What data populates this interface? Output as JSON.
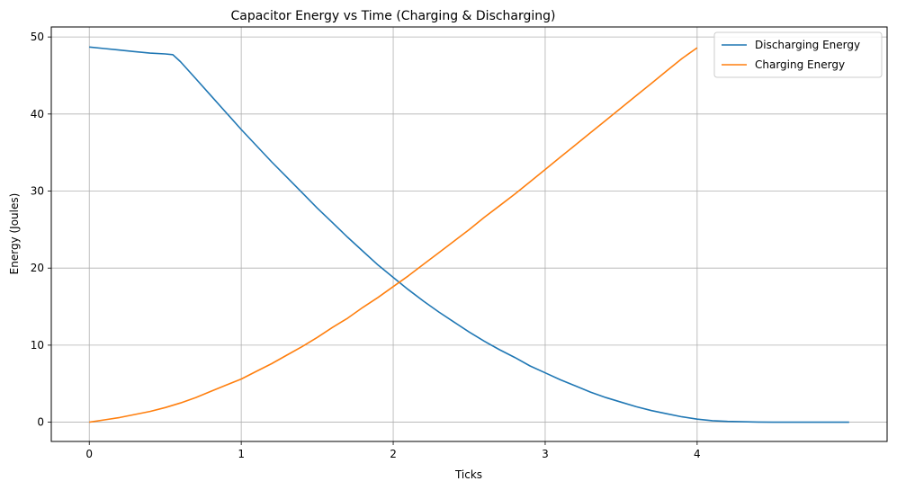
{
  "chart_data": {
    "type": "line",
    "title": "Capacitor Energy vs Time (Charging & Discharging)",
    "xlabel": "Ticks",
    "ylabel": "Energy (Joules)",
    "xlim": [
      -0.25,
      5.25
    ],
    "ylim": [
      -2.5,
      51.3
    ],
    "xticks": [
      0,
      1,
      2,
      3,
      4
    ],
    "yticks": [
      0,
      10,
      20,
      30,
      40,
      50
    ],
    "grid": true,
    "legend_position": "top-right",
    "series": [
      {
        "name": "Discharging Energy",
        "color": "#1f77b4",
        "x": [
          0,
          0.1,
          0.2,
          0.3,
          0.4,
          0.5,
          0.55,
          0.6,
          0.7,
          0.8,
          0.9,
          1.0,
          1.1,
          1.2,
          1.3,
          1.4,
          1.5,
          1.6,
          1.7,
          1.8,
          1.9,
          2.0,
          2.1,
          2.2,
          2.3,
          2.4,
          2.5,
          2.6,
          2.7,
          2.8,
          2.9,
          3.0,
          3.1,
          3.2,
          3.3,
          3.4,
          3.5,
          3.6,
          3.7,
          3.8,
          3.9,
          4.0,
          4.1,
          4.2,
          4.3,
          4.4,
          4.5,
          4.7,
          5.0
        ],
        "y": [
          48.7,
          48.5,
          48.3,
          48.1,
          47.9,
          47.8,
          47.7,
          46.8,
          44.6,
          42.4,
          40.2,
          38.0,
          35.9,
          33.8,
          31.8,
          29.8,
          27.8,
          25.9,
          24.0,
          22.2,
          20.4,
          18.8,
          17.2,
          15.7,
          14.3,
          13.0,
          11.7,
          10.5,
          9.4,
          8.4,
          7.3,
          6.4,
          5.5,
          4.7,
          3.9,
          3.2,
          2.6,
          2.0,
          1.5,
          1.1,
          0.7,
          0.4,
          0.2,
          0.1,
          0.05,
          0.02,
          0.0,
          0.0,
          0.0
        ]
      },
      {
        "name": "Charging Energy",
        "color": "#ff7f0e",
        "x": [
          0,
          0.1,
          0.2,
          0.3,
          0.4,
          0.5,
          0.6,
          0.7,
          0.8,
          0.9,
          1.0,
          1.1,
          1.2,
          1.3,
          1.4,
          1.5,
          1.6,
          1.7,
          1.8,
          1.9,
          2.0,
          2.1,
          2.2,
          2.3,
          2.4,
          2.5,
          2.6,
          2.7,
          2.8,
          2.9,
          3.0,
          3.1,
          3.2,
          3.3,
          3.4,
          3.5,
          3.6,
          3.7,
          3.8,
          3.9,
          4.0
        ],
        "y": [
          0.0,
          0.3,
          0.6,
          1.0,
          1.4,
          1.9,
          2.5,
          3.2,
          4.0,
          4.8,
          5.6,
          6.6,
          7.6,
          8.7,
          9.8,
          11.0,
          12.3,
          13.5,
          14.9,
          16.2,
          17.6,
          19.0,
          20.5,
          22.0,
          23.5,
          25.0,
          26.6,
          28.1,
          29.6,
          31.2,
          32.8,
          34.4,
          36.0,
          37.6,
          39.2,
          40.8,
          42.4,
          44.0,
          45.6,
          47.2,
          48.6
        ]
      }
    ]
  }
}
